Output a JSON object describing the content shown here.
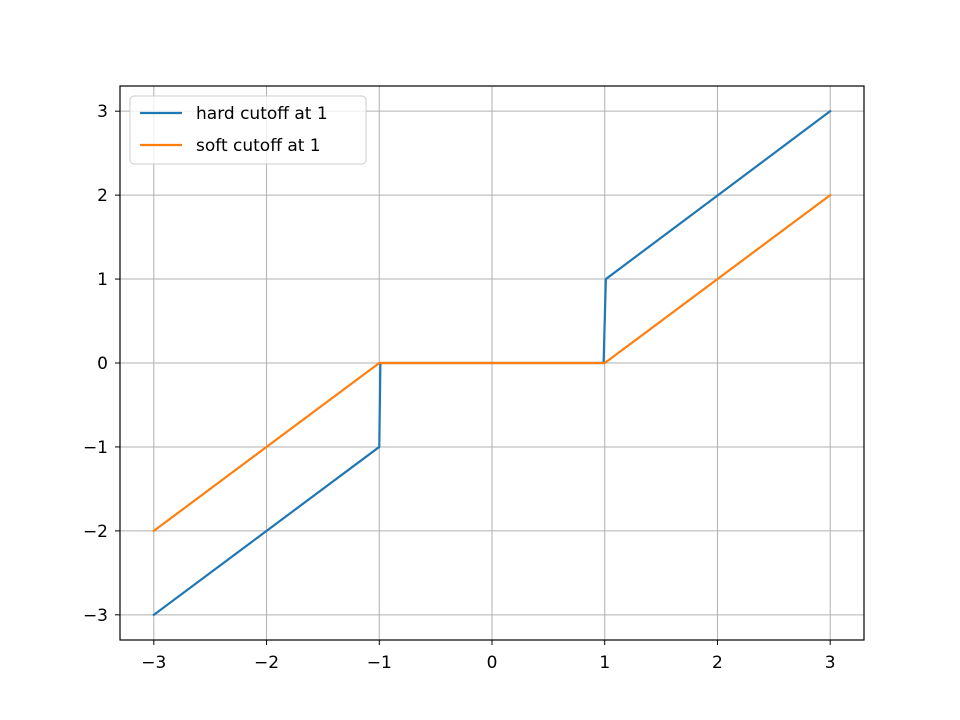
{
  "chart_data": {
    "type": "line",
    "title": "",
    "xlabel": "",
    "ylabel": "",
    "xlim": [
      -3.3,
      3.3
    ],
    "ylim": [
      -3.3,
      3.3
    ],
    "grid": true,
    "legend_position": "top-left",
    "x_ticks": [
      -3,
      -2,
      -1,
      0,
      1,
      2,
      3
    ],
    "y_ticks": [
      -3,
      -2,
      -1,
      0,
      1,
      2,
      3
    ],
    "x_tick_labels": [
      "−3",
      "−2",
      "−1",
      "0",
      "1",
      "2",
      "3"
    ],
    "y_tick_labels": [
      "−3",
      "−2",
      "−1",
      "0",
      "1",
      "2",
      "3"
    ],
    "series": [
      {
        "name": "hard cutoff at 1",
        "color": "#1f77b4",
        "points": [
          [
            -3,
            -3
          ],
          [
            -1,
            -1
          ],
          [
            -0.99,
            0
          ],
          [
            0.99,
            0
          ],
          [
            1.01,
            1
          ],
          [
            3,
            3
          ]
        ]
      },
      {
        "name": "soft cutoff at 1",
        "color": "#ff7f0e",
        "points": [
          [
            -3,
            -2
          ],
          [
            -1,
            0
          ],
          [
            1,
            0
          ],
          [
            3,
            2
          ]
        ]
      }
    ]
  }
}
